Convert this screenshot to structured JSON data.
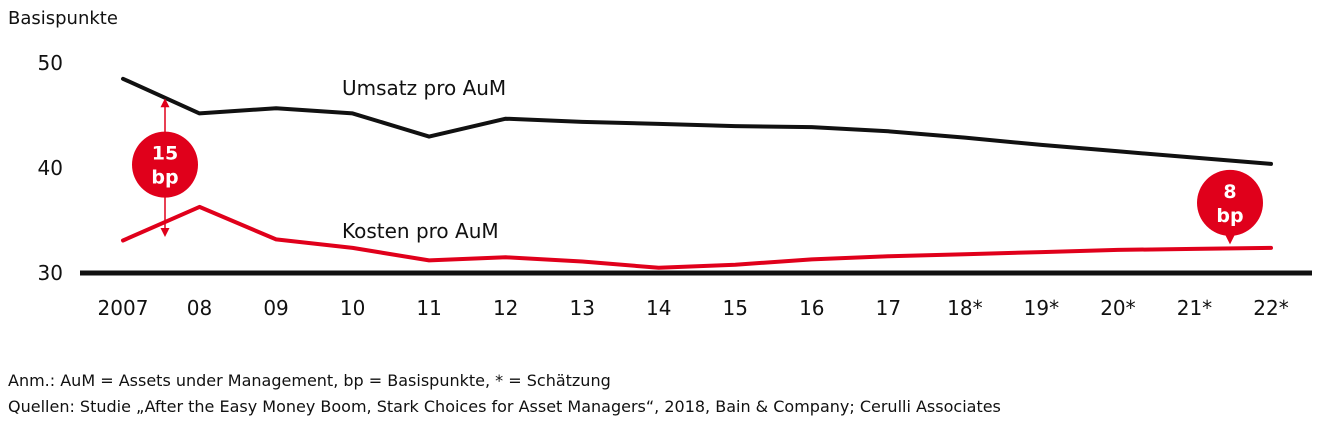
{
  "chart_data": {
    "type": "line",
    "ylabel": "Basispunkte",
    "ylim": [
      30,
      50
    ],
    "yticks": [
      "50",
      "40",
      "30"
    ],
    "categories": [
      "2007",
      "08",
      "09",
      "10",
      "11",
      "12",
      "13",
      "14",
      "15",
      "16",
      "17",
      "18*",
      "19*",
      "20*",
      "21*",
      "22*"
    ],
    "series": [
      {
        "name": "Umsatz pro AuM",
        "color": "#111111",
        "values": [
          48.4,
          45.1,
          45.6,
          45.1,
          42.9,
          44.6,
          44.3,
          44.1,
          43.9,
          43.8,
          43.4,
          42.8,
          42.1,
          41.5,
          40.9,
          40.3
        ]
      },
      {
        "name": "Kosten pro AuM",
        "color": "#e0001b",
        "values": [
          33.0,
          36.2,
          33.1,
          32.3,
          31.1,
          31.4,
          31.0,
          30.4,
          30.7,
          31.2,
          31.5,
          31.7,
          31.9,
          32.1,
          32.2,
          32.3
        ]
      }
    ],
    "annotations": [
      {
        "text_line1": "15",
        "text_line2": "bp",
        "category": "2007"
      },
      {
        "text_line1": "8",
        "text_line2": "bp",
        "category": "22*"
      }
    ],
    "accent_color": "#e0001b"
  },
  "notes": {
    "line1": "Anm.: AuM = Assets under Management, bp = Basispunkte, * =  Schätzung",
    "line2": "Quellen: Studie „After the Easy Money Boom, Stark Choices for Asset Managers“, 2018, Bain & Company; Cerulli Associates"
  }
}
